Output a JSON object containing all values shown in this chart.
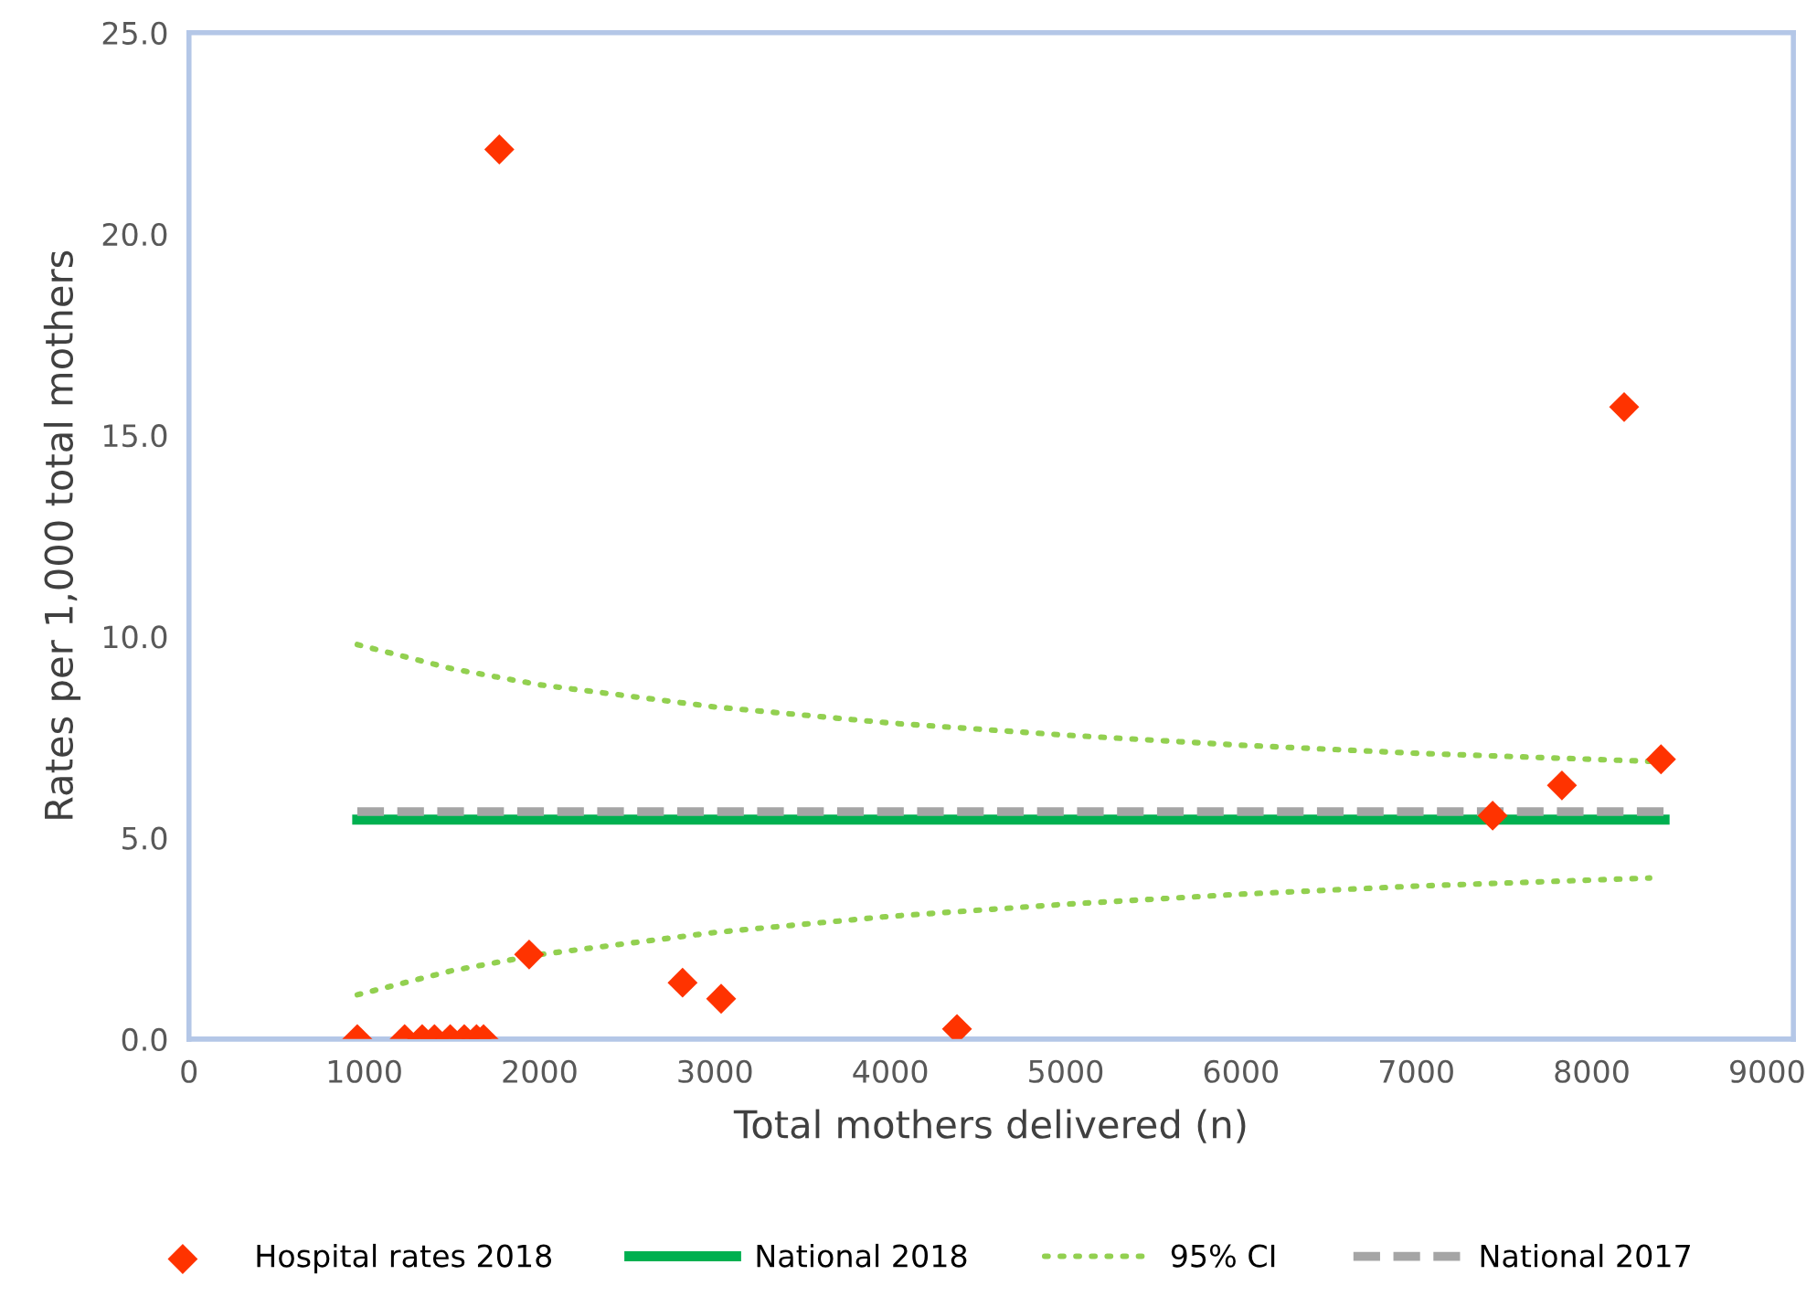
{
  "chart_data": {
    "type": "scatter",
    "xlabel": "Total mothers delivered (n)",
    "ylabel": "Rates per 1,000 total mothers",
    "xlim": [
      0,
      9150
    ],
    "xticks": [
      0,
      1000,
      2000,
      3000,
      4000,
      5000,
      6000,
      7000,
      8000,
      9000
    ],
    "ylim": [
      0,
      25
    ],
    "yticks": [
      {
        "value": 0,
        "label": "0.0"
      },
      {
        "value": 5,
        "label": "5.0"
      },
      {
        "value": 10,
        "label": "10.0"
      },
      {
        "value": 15,
        "label": "15.0"
      },
      {
        "value": 20,
        "label": "20.0"
      },
      {
        "value": 25,
        "label": "25.0"
      }
    ],
    "grid": false,
    "legend": "bottom",
    "series": [
      {
        "name": "Hospital rates 2018",
        "marker": "diamond",
        "color": "#ff3300",
        "x": [
          960,
          1230,
          1330,
          1400,
          1490,
          1570,
          1640,
          1680,
          1770,
          1940,
          2815,
          3035,
          4380,
          7435,
          7830,
          8185,
          8395
        ],
        "values": [
          0,
          0,
          0,
          0,
          0,
          0,
          0,
          0,
          22.1,
          2.1,
          1.4,
          1.0,
          0.25,
          5.55,
          6.3,
          15.7,
          6.95
        ]
      },
      {
        "name": "National 2018",
        "type": "line",
        "line_style": "solid",
        "color": "#00b050",
        "x": [
          960,
          8415
        ],
        "values": [
          5.45,
          5.45
        ]
      },
      {
        "name": "95% CI",
        "type": "line",
        "line_style": "dotted",
        "color": "#92d050",
        "x": [
          960,
          1500,
          2000,
          3000,
          4000,
          5000,
          6000,
          7000,
          8330
        ],
        "values": [
          9.8,
          9.2,
          8.8,
          8.25,
          7.85,
          7.55,
          7.3,
          7.1,
          6.9
        ]
      },
      {
        "type": "line",
        "line_style": "dotted",
        "color": "#92d050",
        "x": [
          960,
          1500,
          2000,
          3000,
          4000,
          5000,
          6000,
          7000,
          8330
        ],
        "values": [
          1.1,
          1.7,
          2.1,
          2.65,
          3.05,
          3.35,
          3.6,
          3.8,
          4.0
        ]
      },
      {
        "name": "National 2017",
        "type": "line",
        "line_style": "dashed",
        "color": "#a5a5a5",
        "x": [
          960,
          8415
        ],
        "values": [
          5.65,
          5.65
        ]
      }
    ]
  }
}
